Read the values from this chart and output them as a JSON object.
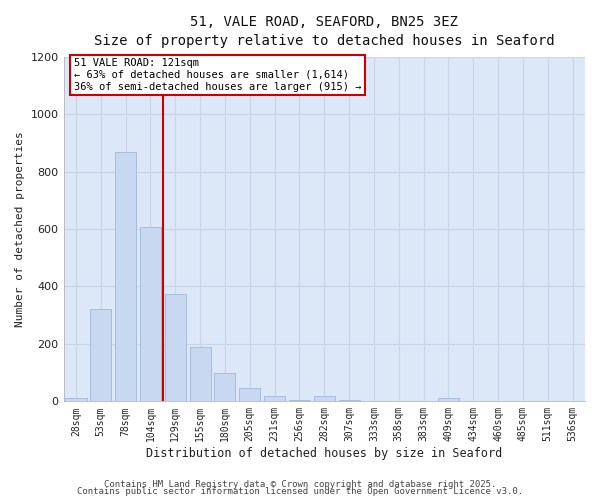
{
  "title": "51, VALE ROAD, SEAFORD, BN25 3EZ",
  "subtitle": "Size of property relative to detached houses in Seaford",
  "xlabel": "Distribution of detached houses by size in Seaford",
  "ylabel": "Number of detached properties",
  "bar_color": "#c8d8f0",
  "bar_edge_color": "#a0b8d8",
  "background_color": "#ffffff",
  "grid_color": "#c8d4e8",
  "plot_bg_color": "#dce8f8",
  "categories": [
    "28sqm",
    "53sqm",
    "78sqm",
    "104sqm",
    "129sqm",
    "155sqm",
    "180sqm",
    "205sqm",
    "231sqm",
    "256sqm",
    "282sqm",
    "307sqm",
    "333sqm",
    "358sqm",
    "383sqm",
    "409sqm",
    "434sqm",
    "460sqm",
    "485sqm",
    "511sqm",
    "536sqm"
  ],
  "values": [
    12,
    323,
    868,
    608,
    375,
    188,
    100,
    45,
    18,
    5,
    20,
    5,
    0,
    0,
    0,
    10,
    0,
    0,
    0,
    0,
    0
  ],
  "vline_color": "#cc0000",
  "annotation_title": "51 VALE ROAD: 121sqm",
  "annotation_line1": "← 63% of detached houses are smaller (1,614)",
  "annotation_line2": "36% of semi-detached houses are larger (915) →",
  "annotation_box_color": "#cc0000",
  "ylim": [
    0,
    1200
  ],
  "yticks": [
    0,
    200,
    400,
    600,
    800,
    1000,
    1200
  ],
  "footer1": "Contains HM Land Registry data © Crown copyright and database right 2025.",
  "footer2": "Contains public sector information licensed under the Open Government Licence v3.0."
}
